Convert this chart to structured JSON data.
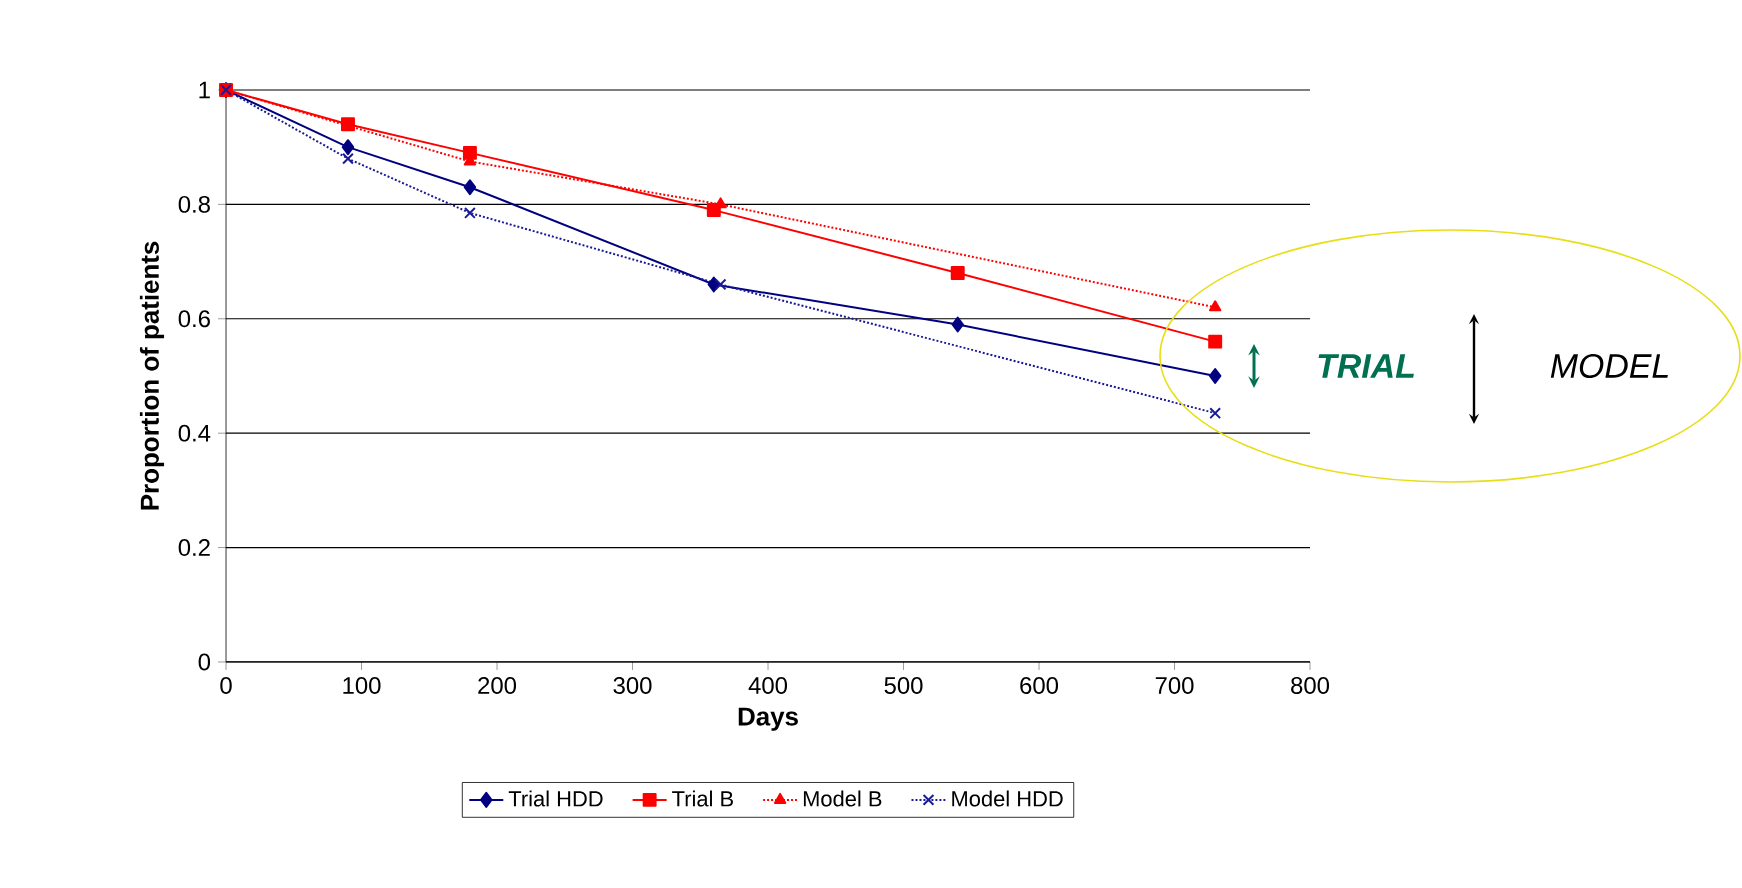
{
  "chart_data": {
    "type": "line",
    "xlabel": "Days",
    "ylabel": "Proportion of patients",
    "xlim": [
      0,
      800
    ],
    "xticks": [
      0,
      100,
      200,
      300,
      400,
      500,
      600,
      700,
      800
    ],
    "ylim": [
      0,
      1
    ],
    "yticks": [
      0,
      0.2,
      0.4,
      0.6,
      0.8,
      1
    ],
    "grid": "y",
    "legend": "bottom",
    "series": [
      {
        "name": "Trial HDD",
        "color": "#000080",
        "marker": "diamond",
        "line_style": "solid",
        "x": [
          0,
          90,
          180,
          360,
          540,
          730
        ],
        "values": [
          1,
          0.9,
          0.83,
          0.66,
          0.59,
          0.5
        ]
      },
      {
        "name": "Trial B",
        "color": "#ff0000",
        "marker": "square",
        "line_style": "solid",
        "x": [
          0,
          90,
          180,
          360,
          540,
          730
        ],
        "values": [
          1,
          0.94,
          0.89,
          0.79,
          0.68,
          0.56
        ]
      },
      {
        "name": "Model B",
        "color": "#ff0000",
        "marker": "triangle",
        "line_style": "dotted",
        "x": [
          0,
          90,
          180,
          365,
          730
        ],
        "values": [
          1,
          null,
          0.875,
          0.8,
          0.62
        ]
      },
      {
        "name": "Model HDD",
        "color": "#1a1a99",
        "marker": "cross",
        "line_style": "dotted",
        "x": [
          0,
          90,
          180,
          365,
          730
        ],
        "values": [
          1,
          0.88,
          0.785,
          0.66,
          0.435
        ]
      }
    ],
    "annotations": [
      "TRIAL",
      "MODEL"
    ]
  }
}
